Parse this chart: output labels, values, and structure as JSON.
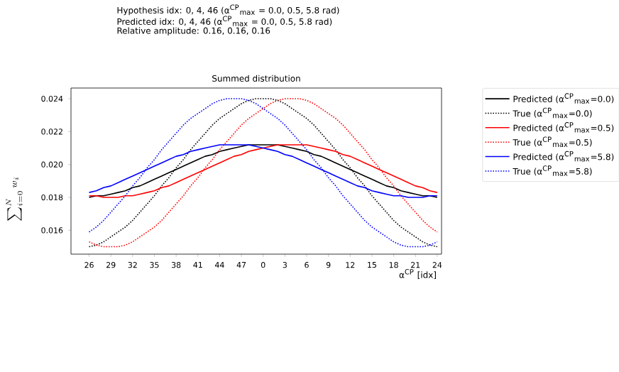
{
  "chart_data": {
    "type": "line",
    "title": "Summed distribution",
    "annotations": [
      "Hypothesis idx: 0, 4, 46 (α$^{CP}$$_{max}$ = 0.0, 0.5, 5.8 rad)",
      "Predicted idx: 0, 4, 46 (α$^{CP}$$_{max}$ = 0.0, 0.5, 5.8 rad)",
      "Relative amplitude: 0.16, 0.16, 0.16"
    ],
    "xlabel": "α$^{CP}$ [idx]",
    "ylabel": "\\sum_{i=0}^{N} w_i",
    "categories": [
      "26",
      null,
      null,
      "29",
      null,
      null,
      "32",
      null,
      null,
      "35",
      null,
      null,
      "38",
      null,
      null,
      "41",
      null,
      null,
      "44",
      null,
      null,
      "47",
      null,
      null,
      "0",
      null,
      null,
      "3",
      null,
      null,
      "6",
      null,
      null,
      "9",
      null,
      null,
      "12",
      null,
      null,
      "15",
      null,
      null,
      "18",
      null,
      null,
      "21",
      null,
      null,
      "24"
    ],
    "ylim": [
      0.01455,
      0.02465
    ],
    "yticks": [
      0.016,
      0.018,
      {
        "value": 0.02,
        "label": "0.020"
      },
      0.022,
      0.024
    ],
    "grid": false,
    "legend": "right",
    "marker": "none",
    "series": [
      {
        "name": "Predicted (α$^{CP}$$_{max}$=0.0)",
        "color": "#000000",
        "line_style": "solid",
        "values": [
          0.018,
          0.0181,
          0.0181,
          0.0182,
          0.0183,
          0.0184,
          0.0186,
          0.0187,
          0.0189,
          0.0191,
          0.0193,
          0.0195,
          0.0197,
          0.0199,
          0.0201,
          0.0203,
          0.0205,
          0.0206,
          0.0208,
          0.0209,
          0.021,
          0.0211,
          0.0212,
          0.0212,
          0.0212,
          0.0212,
          0.0212,
          0.0211,
          0.021,
          0.0209,
          0.0208,
          0.0206,
          0.0205,
          0.0203,
          0.0201,
          0.0199,
          0.0197,
          0.0195,
          0.0193,
          0.0191,
          0.0189,
          0.0187,
          0.0186,
          0.0184,
          0.0183,
          0.0182,
          0.0181,
          0.0181,
          0.018
        ]
      },
      {
        "name": "True (α$^{CP}$$_{max}$=0.0)",
        "color": "#000000",
        "line_style": "dotted",
        "values": [
          0.015,
          0.0151,
          0.0153,
          0.0156,
          0.0159,
          0.0162,
          0.0166,
          0.0171,
          0.0176,
          0.0181,
          0.0187,
          0.0192,
          0.0198,
          0.0203,
          0.0209,
          0.0214,
          0.0219,
          0.0224,
          0.0228,
          0.0231,
          0.0234,
          0.0237,
          0.0239,
          0.024,
          0.024,
          0.024,
          0.0239,
          0.0237,
          0.0234,
          0.0231,
          0.0228,
          0.0224,
          0.0219,
          0.0214,
          0.0209,
          0.0203,
          0.0198,
          0.0192,
          0.0187,
          0.0181,
          0.0176,
          0.0171,
          0.0166,
          0.0162,
          0.0159,
          0.0156,
          0.0153,
          0.0151,
          0.015
        ]
      },
      {
        "name": "Predicted (α$^{CP}$$_{max}$=0.5)",
        "color": "#ff0000",
        "line_style": "solid",
        "values": [
          0.0181,
          0.0181,
          0.018,
          0.018,
          0.018,
          0.0181,
          0.0181,
          0.0182,
          0.0183,
          0.0184,
          0.0186,
          0.0187,
          0.0189,
          0.0191,
          0.0193,
          0.0195,
          0.0197,
          0.0199,
          0.0201,
          0.0203,
          0.0205,
          0.0206,
          0.0208,
          0.0209,
          0.021,
          0.0211,
          0.0212,
          0.0212,
          0.0212,
          0.0212,
          0.0212,
          0.0211,
          0.021,
          0.0209,
          0.0208,
          0.0206,
          0.0205,
          0.0203,
          0.0201,
          0.0199,
          0.0197,
          0.0195,
          0.0193,
          0.0191,
          0.0189,
          0.0187,
          0.0186,
          0.0184,
          0.0183
        ]
      },
      {
        "name": "True (α$^{CP}$$_{max}$=0.5)",
        "color": "#ff0000",
        "line_style": "dotted",
        "values": [
          0.0153,
          0.0151,
          0.015,
          0.015,
          0.015,
          0.0151,
          0.0153,
          0.0156,
          0.0159,
          0.0162,
          0.0166,
          0.0171,
          0.0176,
          0.0181,
          0.0187,
          0.0192,
          0.0198,
          0.0203,
          0.0209,
          0.0214,
          0.0219,
          0.0224,
          0.0228,
          0.0231,
          0.0234,
          0.0237,
          0.0239,
          0.024,
          0.024,
          0.024,
          0.0239,
          0.0237,
          0.0234,
          0.0231,
          0.0228,
          0.0224,
          0.0219,
          0.0214,
          0.0209,
          0.0203,
          0.0198,
          0.0192,
          0.0187,
          0.0181,
          0.0176,
          0.0171,
          0.0166,
          0.0162,
          0.0159
        ]
      },
      {
        "name": "Predicted (α$^{CP}$$_{max}$=5.8)",
        "color": "#0000ff",
        "line_style": "solid",
        "values": [
          0.0183,
          0.0184,
          0.0186,
          0.0187,
          0.0189,
          0.0191,
          0.0193,
          0.0195,
          0.0197,
          0.0199,
          0.0201,
          0.0203,
          0.0205,
          0.0206,
          0.0208,
          0.0209,
          0.021,
          0.0211,
          0.0212,
          0.0212,
          0.0212,
          0.0212,
          0.0212,
          0.0211,
          0.021,
          0.0209,
          0.0208,
          0.0206,
          0.0205,
          0.0203,
          0.0201,
          0.0199,
          0.0197,
          0.0195,
          0.0193,
          0.0191,
          0.0189,
          0.0187,
          0.0186,
          0.0184,
          0.0183,
          0.0182,
          0.0181,
          0.0181,
          0.018,
          0.018,
          0.018,
          0.0181,
          0.0181
        ]
      },
      {
        "name": "True (α$^{CP}$$_{max}$=5.8)",
        "color": "#0000ff",
        "line_style": "dotted",
        "values": [
          0.0159,
          0.0162,
          0.0166,
          0.0171,
          0.0176,
          0.0181,
          0.0187,
          0.0192,
          0.0198,
          0.0203,
          0.0209,
          0.0214,
          0.0219,
          0.0224,
          0.0228,
          0.0231,
          0.0234,
          0.0237,
          0.0239,
          0.024,
          0.024,
          0.024,
          0.0239,
          0.0237,
          0.0234,
          0.0231,
          0.0228,
          0.0224,
          0.0219,
          0.0214,
          0.0209,
          0.0203,
          0.0198,
          0.0192,
          0.0187,
          0.0181,
          0.0176,
          0.0171,
          0.0166,
          0.0162,
          0.0159,
          0.0156,
          0.0153,
          0.0151,
          0.015,
          0.015,
          0.015,
          0.0151,
          0.0153
        ]
      }
    ]
  }
}
